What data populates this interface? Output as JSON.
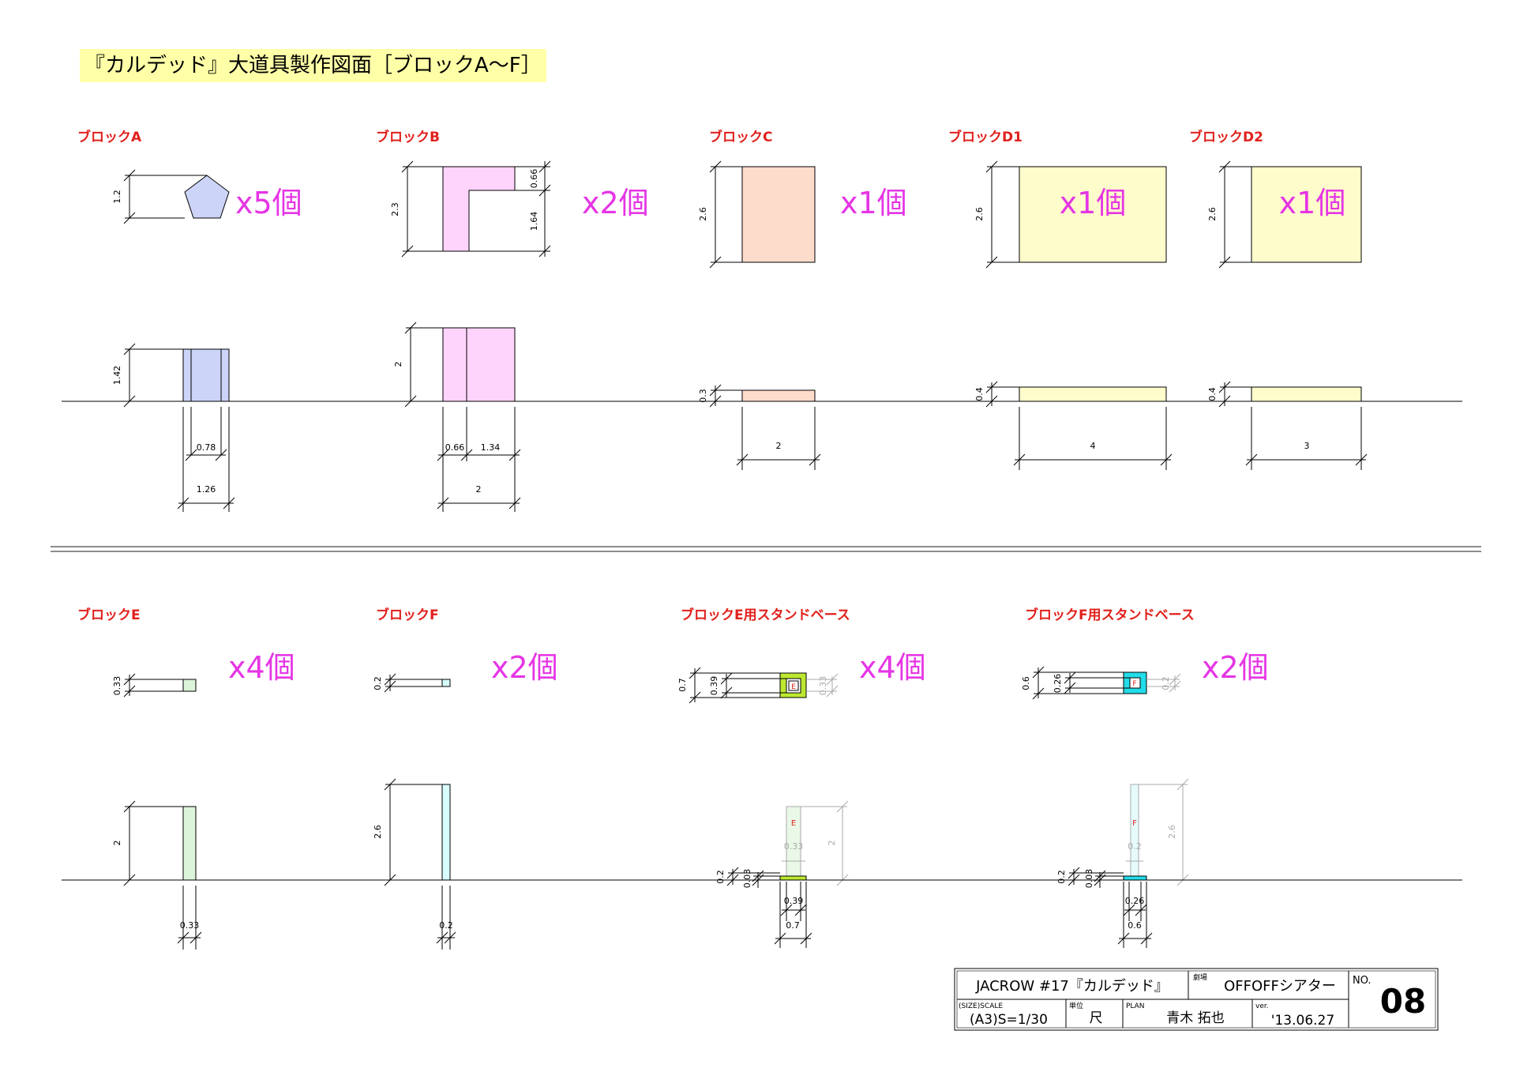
{
  "title": "『カルデッド』大道具製作図面［ブロックA〜F］",
  "blocks": {
    "a": {
      "label": "ブロックA",
      "count": "x5個",
      "d_height": "1.2",
      "e_height": "1.42",
      "w_inner": "0.78",
      "w_total": "1.26"
    },
    "b": {
      "label": "ブロックB",
      "count": "x2個",
      "d_height": "2.3",
      "d_top": "0.66",
      "d_bottom": "1.64",
      "e_height": "2",
      "w_left": "0.66",
      "w_right": "1.34",
      "w_total": "2"
    },
    "c": {
      "label": "ブロックC",
      "count": "x1個",
      "d_height": "2.6",
      "e_height": "0.3",
      "w_total": "2"
    },
    "d1": {
      "label": "ブロックD1",
      "count": "x1個",
      "d_height": "2.6",
      "e_height": "0.4",
      "w_total": "4"
    },
    "d2": {
      "label": "ブロックD2",
      "count": "x1個",
      "d_height": "2.6",
      "e_height": "0.4",
      "w_total": "3"
    },
    "e": {
      "label": "ブロックE",
      "count": "x4個",
      "d_height": "0.33",
      "e_height": "2",
      "w_total": "0.33"
    },
    "f": {
      "label": "ブロックF",
      "count": "x2個",
      "d_height": "0.2",
      "e_height": "2.6",
      "w_total": "0.2"
    },
    "es": {
      "label": "ブロックE用スタンドベース",
      "count": "x4個",
      "d_outer": "0.7",
      "d_inner": "0.39",
      "d_gray": "0.33",
      "mark": "E",
      "e_base": "0.2",
      "e_plate": "0.03",
      "e_gray_w": "0.33",
      "e_gray_h": "2",
      "w_inner": "0.39",
      "w_total": "0.7"
    },
    "fs": {
      "label": "ブロックF用スタンドベース",
      "count": "x2個",
      "d_outer": "0.6",
      "d_inner": "0.26",
      "d_gray": "0.2",
      "mark": "F",
      "e_base": "0.2",
      "e_plate": "0.03",
      "e_gray_w": "0.2",
      "e_gray_h": "2.6",
      "w_inner": "0.26",
      "w_total": "0.6"
    }
  },
  "colors": {
    "a": "#ccd4f8",
    "b": "#ffd4fc",
    "c": "#fedccb",
    "d": "#fffccc",
    "e": "#dcf4da",
    "f": "#d8fcfc",
    "es": "#bde830",
    "fs": "#22dce8",
    "label": "#e0201c",
    "count": "#e535e5"
  },
  "titleblock": {
    "project": "JACROW #17『カルデッド』",
    "theater_label": "劇場",
    "theater": "OFFOFFシアター",
    "no_label": "NO.",
    "no": "08",
    "size_label": "(SIZE)SCALE",
    "size": "(A3)S=1/30",
    "unit_label": "単位",
    "unit": "尺",
    "plan_label": "PLAN",
    "plan": "青木 拓也",
    "ver_label": "ver.",
    "ver": "'13.06.27"
  }
}
